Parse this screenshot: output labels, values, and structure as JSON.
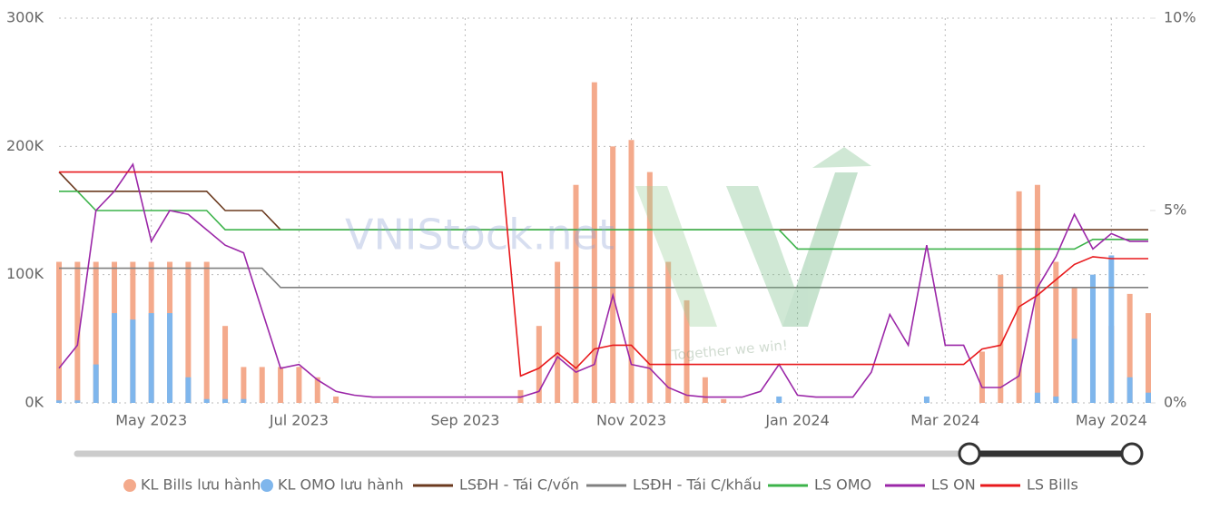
{
  "chart_data": {
    "type": "combo",
    "annotations": [
      "VNIStock.net",
      "Together we win!"
    ],
    "categories": [
      null,
      null,
      null,
      null,
      null,
      "May 2023",
      null,
      null,
      null,
      null,
      null,
      null,
      null,
      "Jul 2023",
      null,
      null,
      null,
      null,
      null,
      null,
      null,
      null,
      "Sep 2023",
      null,
      null,
      null,
      null,
      null,
      null,
      null,
      null,
      "Nov 2023",
      null,
      null,
      null,
      null,
      null,
      null,
      null,
      null,
      "Jan 2024",
      null,
      null,
      null,
      null,
      null,
      null,
      null,
      "Mar 2024",
      null,
      null,
      null,
      null,
      null,
      null,
      null,
      null,
      "May 2024",
      null,
      null
    ],
    "ylim": [
      0,
      300000
    ],
    "yticks": [
      {
        "value": 0,
        "label": "0K"
      },
      {
        "value": 100000,
        "label": "100K"
      },
      {
        "value": 200000,
        "label": "200K"
      },
      {
        "value": 300000,
        "label": "300K"
      }
    ],
    "y2lim": [
      0,
      10
    ],
    "y2ticks": [
      {
        "value": 0,
        "label": "0%"
      },
      {
        "value": 5,
        "label": "5%"
      },
      {
        "value": 10,
        "label": "10%"
      }
    ],
    "grid": true,
    "series": [
      {
        "name": "KL Bills lưu hành",
        "mark": "bar",
        "color": "#f4aa8c",
        "values": [
          110000,
          110000,
          110000,
          110000,
          110000,
          110000,
          110000,
          110000,
          110000,
          60000,
          28000,
          28000,
          28000,
          28000,
          20000,
          5000,
          0,
          0,
          0,
          0,
          0,
          0,
          0,
          0,
          0,
          10000,
          60000,
          110000,
          170000,
          250000,
          200000,
          205000,
          180000,
          110000,
          80000,
          20000,
          3000,
          0,
          0,
          0,
          0,
          0,
          0,
          0,
          0,
          0,
          0,
          0,
          0,
          0,
          40000,
          100000,
          165000,
          170000,
          110000,
          90000,
          40000,
          60000,
          85000,
          70000
        ]
      },
      {
        "name": "KL OMO lưu hành",
        "mark": "bar",
        "color": "#7fb6ec",
        "values": [
          2000,
          2000,
          30000,
          70000,
          65000,
          70000,
          70000,
          20000,
          3000,
          3000,
          3000,
          0,
          0,
          0,
          0,
          0,
          0,
          0,
          0,
          0,
          0,
          0,
          0,
          0,
          0,
          0,
          0,
          0,
          0,
          0,
          0,
          0,
          0,
          0,
          0,
          0,
          0,
          0,
          0,
          5000,
          0,
          0,
          0,
          0,
          0,
          0,
          0,
          5000,
          0,
          0,
          0,
          0,
          0,
          8000,
          5000,
          50000,
          100000,
          115000,
          20000,
          8000
        ]
      },
      {
        "name": "LSĐH - Tái C/vốn",
        "mark": "line",
        "axis": "y2",
        "color": "#6b3a1f",
        "values": [
          6,
          5.5,
          5.5,
          5.5,
          5.5,
          5.5,
          5.5,
          5.5,
          5.5,
          5,
          5,
          5,
          4.5,
          4.5,
          4.5,
          4.5,
          4.5,
          4.5,
          4.5,
          4.5,
          4.5,
          4.5,
          4.5,
          4.5,
          4.5,
          4.5,
          4.5,
          4.5,
          4.5,
          4.5,
          4.5,
          4.5,
          4.5,
          4.5,
          4.5,
          4.5,
          4.5,
          4.5,
          4.5,
          4.5,
          4.5,
          4.5,
          4.5,
          4.5,
          4.5,
          4.5,
          4.5,
          4.5,
          4.5,
          4.5,
          4.5,
          4.5,
          4.5,
          4.5,
          4.5,
          4.5,
          4.5,
          4.5,
          4.5,
          4.5
        ]
      },
      {
        "name": "LSĐH - Tái C/khấu",
        "mark": "line",
        "axis": "y2",
        "color": "#808080",
        "values": [
          3.5,
          3.5,
          3.5,
          3.5,
          3.5,
          3.5,
          3.5,
          3.5,
          3.5,
          3.5,
          3.5,
          3.5,
          3,
          3,
          3,
          3,
          3,
          3,
          3,
          3,
          3,
          3,
          3,
          3,
          3,
          3,
          3,
          3,
          3,
          3,
          3,
          3,
          3,
          3,
          3,
          3,
          3,
          3,
          3,
          3,
          3,
          3,
          3,
          3,
          3,
          3,
          3,
          3,
          3,
          3,
          3,
          3,
          3,
          3,
          3,
          3,
          3,
          3,
          3,
          3
        ]
      },
      {
        "name": "LS OMO",
        "mark": "line",
        "axis": "y2",
        "color": "#3cb34a",
        "values": [
          5.5,
          5.5,
          5,
          5,
          5,
          5,
          5,
          5,
          5,
          4.5,
          4.5,
          4.5,
          4.5,
          4.5,
          4.5,
          4.5,
          4.5,
          4.5,
          4.5,
          4.5,
          4.5,
          4.5,
          4.5,
          4.5,
          4.5,
          4.5,
          4.5,
          4.5,
          4.5,
          4.5,
          4.5,
          4.5,
          4.5,
          4.5,
          4.5,
          4.5,
          4.5,
          4.5,
          4.5,
          4.5,
          4,
          4,
          4,
          4,
          4,
          4,
          4,
          4,
          4,
          4,
          4,
          4,
          4,
          4,
          4,
          4,
          4.25,
          4.25,
          4.25,
          4.25
        ]
      },
      {
        "name": "LS ON",
        "mark": "line",
        "axis": "y2",
        "color": "#9b27a8",
        "values": [
          0.9,
          1.5,
          5.0,
          5.5,
          6.2,
          4.2,
          5.0,
          4.9,
          4.5,
          4.1,
          3.9,
          2.4,
          0.9,
          1.0,
          0.6,
          0.3,
          0.2,
          0.15,
          0.15,
          0.15,
          0.15,
          0.15,
          0.15,
          0.15,
          0.15,
          0.15,
          0.3,
          1.2,
          0.8,
          1.0,
          2.8,
          1.0,
          0.9,
          0.4,
          0.2,
          0.15,
          0.15,
          0.15,
          0.3,
          1.0,
          0.2,
          0.15,
          0.15,
          0.15,
          0.8,
          2.3,
          1.5,
          4.1,
          1.5,
          1.5,
          0.4,
          0.4,
          0.7,
          3.0,
          3.8,
          4.9,
          4.0,
          4.4,
          4.2,
          4.2
        ]
      },
      {
        "name": "LS Bills",
        "mark": "line",
        "axis": "y2",
        "color": "#e8191c",
        "values": [
          6,
          6,
          6,
          6,
          6,
          6,
          6,
          6,
          6,
          6,
          6,
          6,
          6,
          6,
          6,
          6,
          6,
          6,
          6,
          6,
          6,
          6,
          6,
          6,
          6,
          0.7,
          0.9,
          1.3,
          0.9,
          1.4,
          1.5,
          1.5,
          1.0,
          1.0,
          1.0,
          1.0,
          1.0,
          1.0,
          1.0,
          1.0,
          1.0,
          1.0,
          1.0,
          1.0,
          1.0,
          1.0,
          1.0,
          1.0,
          1.0,
          1.0,
          1.4,
          1.5,
          2.5,
          2.8,
          3.2,
          3.6,
          3.8,
          3.75,
          3.75,
          3.75
        ]
      }
    ]
  }
}
